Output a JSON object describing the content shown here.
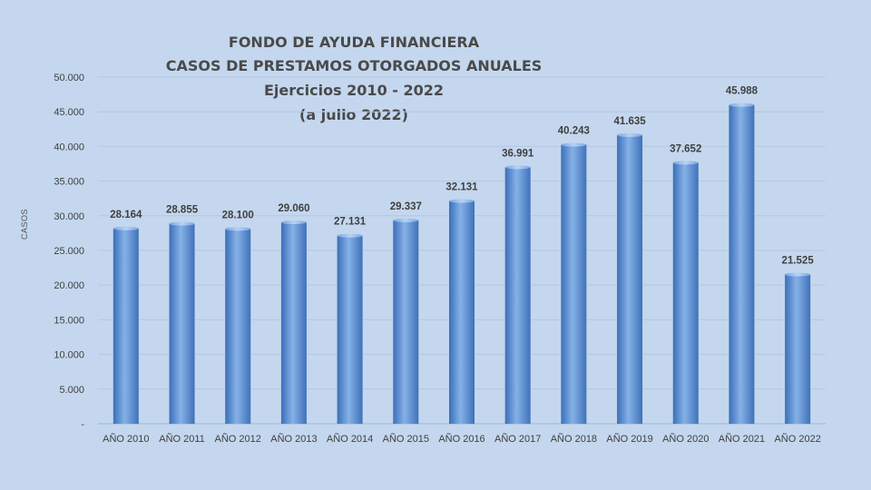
{
  "chart_data": {
    "type": "bar",
    "title": [
      "FONDO DE AYUDA FINANCIERA",
      "CASOS DE PRESTAMOS  OTORGADOS  ANUALES",
      "Ejercicios  2010 - 2022",
      "(a julio  2022)"
    ],
    "ylabel": "CASOS",
    "xlabel": "",
    "ylim": [
      0,
      50000
    ],
    "yticks": [
      0,
      5000,
      10000,
      15000,
      20000,
      25000,
      30000,
      35000,
      40000,
      45000,
      50000
    ],
    "ytick_labels": [
      "-",
      "5.000",
      "10.000",
      "15.000",
      "20.000",
      "25.000",
      "30.000",
      "35.000",
      "40.000",
      "45.000",
      "50.000"
    ],
    "categories": [
      "AÑO 2010",
      "AÑO 2011",
      "AÑO 2012",
      "AÑO 2013",
      "AÑO 2014",
      "AÑO 2015",
      "AÑO 2016",
      "AÑO 2017",
      "AÑO 2018",
      "AÑO 2019",
      "AÑO 2020",
      "AÑO 2021",
      "AÑO 2022"
    ],
    "values": [
      28164,
      28855,
      28100,
      29060,
      27131,
      29337,
      32131,
      36991,
      40243,
      41635,
      37652,
      45988,
      21525
    ],
    "data_labels": [
      "28.164",
      "28.855",
      "28.100",
      "29.060",
      "27.131",
      "29.337",
      "32.131",
      "36.991",
      "40.243",
      "41.635",
      "37.652",
      "45.988",
      "21.525"
    ],
    "grid": true,
    "legend": "none",
    "colors": {
      "bar": "#5b8fd6",
      "bar_light": "#8fb6ea",
      "bar_dark": "#3565aa",
      "background": "#c4d7ee",
      "text": "#404040"
    }
  }
}
